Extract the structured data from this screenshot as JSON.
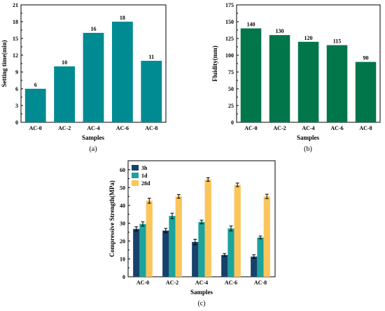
{
  "chart_data": [
    {
      "type": "bar",
      "panel_label": "(a)",
      "categories": [
        "AC-0",
        "AC-2",
        "AC-4",
        "AC-6",
        "AC-8"
      ],
      "values": [
        6,
        10,
        16,
        18,
        11
      ],
      "data_labels": [
        "6",
        "10",
        "16",
        "18",
        "11"
      ],
      "xlabel": "Samples",
      "ylabel": "Setting time(min)",
      "ylim": [
        0,
        21
      ],
      "yticks": [
        "0",
        "3",
        "6",
        "9",
        "12",
        "15",
        "18",
        "21"
      ],
      "color": "#008B93",
      "grid": false
    },
    {
      "type": "bar",
      "panel_label": "(b)",
      "categories": [
        "AC-0",
        "AC-2",
        "AC-4",
        "AC-6",
        "AC-8"
      ],
      "values": [
        140,
        130,
        120,
        115,
        90
      ],
      "data_labels": [
        "140",
        "130",
        "120",
        "115",
        "90"
      ],
      "xlabel": "Samples",
      "ylabel": "Fluidity(mm)",
      "ylim": [
        0,
        175
      ],
      "yticks": [
        "0",
        "25",
        "50",
        "75",
        "100",
        "125",
        "150",
        "175"
      ],
      "color": "#00764A",
      "grid": false
    },
    {
      "type": "bar",
      "panel_label": "(c)",
      "categories": [
        "AC-0",
        "AC-2",
        "AC-4",
        "AC-6",
        "AC-8"
      ],
      "series": [
        {
          "name": "3h",
          "values": [
            26.8,
            25.9,
            19.5,
            12.2,
            11.3
          ],
          "errors": [
            1.2,
            1.2,
            1.5,
            0.8,
            1.0
          ],
          "color": "#17416B"
        },
        {
          "name": "1d",
          "values": [
            29.6,
            34.1,
            30.7,
            27.1,
            22.0
          ],
          "errors": [
            1.2,
            1.5,
            1.0,
            1.4,
            0.8
          ],
          "color": "#1BA39C"
        },
        {
          "name": "28d",
          "values": [
            42.6,
            45.0,
            54.5,
            51.5,
            45.0
          ],
          "errors": [
            1.4,
            1.0,
            1.0,
            1.0,
            1.2
          ],
          "color": "#FBC55A"
        }
      ],
      "xlabel": "Samples",
      "ylabel": "Compressive Strength(MPa)",
      "ylim": [
        0,
        65
      ],
      "yticks": [
        "0",
        "10",
        "20",
        "30",
        "40",
        "50",
        "60"
      ],
      "legend": "top-left",
      "grid": false
    }
  ]
}
